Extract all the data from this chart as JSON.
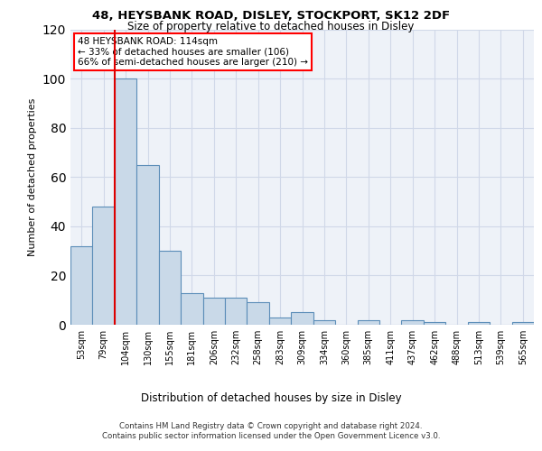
{
  "title1": "48, HEYSBANK ROAD, DISLEY, STOCKPORT, SK12 2DF",
  "title2": "Size of property relative to detached houses in Disley",
  "xlabel": "Distribution of detached houses by size in Disley",
  "ylabel": "Number of detached properties",
  "categories": [
    "53sqm",
    "79sqm",
    "104sqm",
    "130sqm",
    "155sqm",
    "181sqm",
    "206sqm",
    "232sqm",
    "258sqm",
    "283sqm",
    "309sqm",
    "334sqm",
    "360sqm",
    "385sqm",
    "411sqm",
    "437sqm",
    "462sqm",
    "488sqm",
    "513sqm",
    "539sqm",
    "565sqm"
  ],
  "values": [
    32,
    48,
    100,
    65,
    30,
    13,
    11,
    11,
    9,
    3,
    5,
    2,
    0,
    2,
    0,
    2,
    1,
    0,
    1,
    0,
    1
  ],
  "bar_color": "#c9d9e8",
  "bar_edge_color": "#5b8db8",
  "red_line_index": 2,
  "annotation_text": "48 HEYSBANK ROAD: 114sqm\n← 33% of detached houses are smaller (106)\n66% of semi-detached houses are larger (210) →",
  "annotation_box_color": "white",
  "annotation_box_edge_color": "red",
  "red_line_color": "#dd0000",
  "ylim": [
    0,
    120
  ],
  "yticks": [
    0,
    20,
    40,
    60,
    80,
    100,
    120
  ],
  "grid_color": "#d0d8e8",
  "bg_color": "#eef2f8",
  "footer_text": "Contains HM Land Registry data © Crown copyright and database right 2024.\nContains public sector information licensed under the Open Government Licence v3.0."
}
